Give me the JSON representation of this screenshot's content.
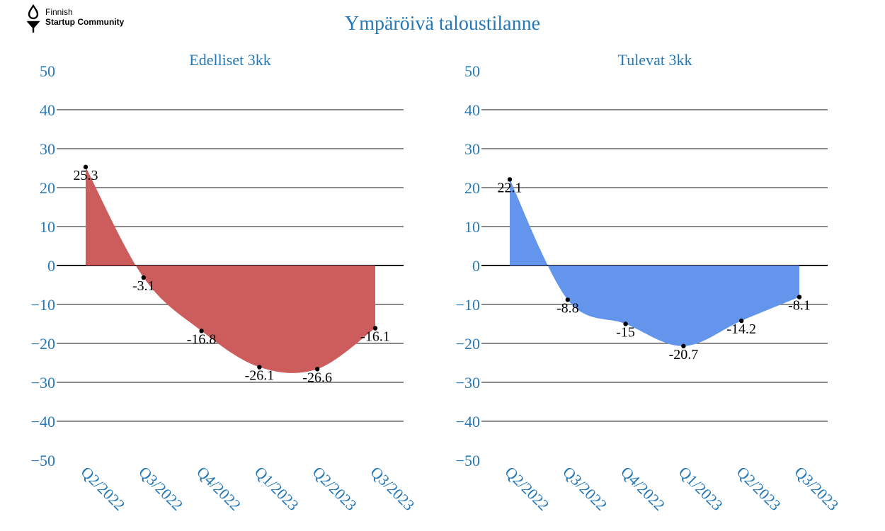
{
  "logo": {
    "line1": "Finnish",
    "line2": "Startup Community"
  },
  "title": "Ympäröivä taloustilanne",
  "chart_data": [
    {
      "type": "area",
      "title": "Edelliset 3kk",
      "categories": [
        "Q2/2022",
        "Q3/2022",
        "Q4/2022",
        "Q1/2023",
        "Q2/2023",
        "Q3/2023"
      ],
      "values": [
        25.3,
        -3.1,
        -16.8,
        -26.1,
        -26.6,
        -16.1
      ],
      "data_labels": [
        "25.3",
        "-3.1",
        "-16.8",
        "-26.1",
        "-26.6",
        "-16.1"
      ],
      "ylim": [
        -50,
        50
      ],
      "yticks": [
        "50",
        "40",
        "30",
        "20",
        "10",
        "0",
        "−10",
        "−20",
        "−30",
        "−40",
        "−50"
      ],
      "grid": true,
      "color": "#cd5c5c"
    },
    {
      "type": "area",
      "title": "Tulevat 3kk",
      "categories": [
        "Q2/2022",
        "Q3/2022",
        "Q4/2022",
        "Q1/2023",
        "Q2/2023",
        "Q3/2023"
      ],
      "values": [
        22.1,
        -8.8,
        -15,
        -20.7,
        -14.2,
        -8.1
      ],
      "data_labels": [
        "22.1",
        "-8.8",
        "-15",
        "-20.7",
        "-14.2",
        "-8.1"
      ],
      "ylim": [
        -50,
        50
      ],
      "yticks": [
        "50",
        "40",
        "30",
        "20",
        "10",
        "0",
        "−10",
        "−20",
        "−30",
        "−40",
        "−50"
      ],
      "grid": true,
      "color": "#6495ed"
    }
  ]
}
